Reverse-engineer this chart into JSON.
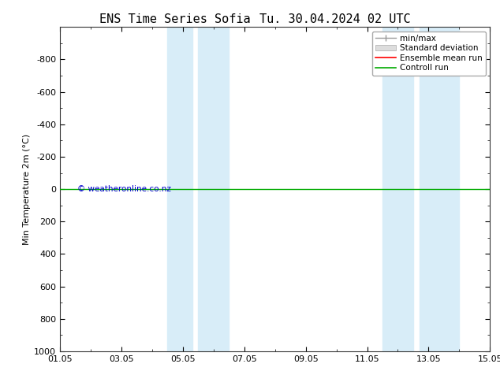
{
  "title_left": "ENS Time Series Sofia",
  "title_right": "Tu. 30.04.2024 02 UTC",
  "ylabel": "Min Temperature 2m (°C)",
  "ylim_bottom": 1000,
  "ylim_top": -1000,
  "yticks": [
    -800,
    -600,
    -400,
    -200,
    0,
    200,
    400,
    600,
    800,
    1000
  ],
  "xtick_labels": [
    "01.05",
    "03.05",
    "05.05",
    "07.05",
    "09.05",
    "11.05",
    "13.05",
    "15.05"
  ],
  "xtick_positions": [
    0,
    2,
    4,
    6,
    8,
    10,
    12,
    14
  ],
  "xlim": [
    0,
    14
  ],
  "shaded_bands": [
    [
      3.5,
      4.3
    ],
    [
      4.5,
      5.5
    ],
    [
      10.5,
      11.5
    ],
    [
      11.7,
      13.0
    ]
  ],
  "green_line_y": 0,
  "band_color": "#d8edf8",
  "background_color": "#ffffff",
  "green_line_color": "#00aa00",
  "red_line_color": "#ff0000",
  "gray_line_color": "#999999",
  "watermark_text": "© weatheronline.co.nz",
  "watermark_color": "#0000cc",
  "legend_items": [
    "min/max",
    "Standard deviation",
    "Ensemble mean run",
    "Controll run"
  ],
  "title_fontsize": 11,
  "axis_fontsize": 8,
  "tick_fontsize": 8
}
